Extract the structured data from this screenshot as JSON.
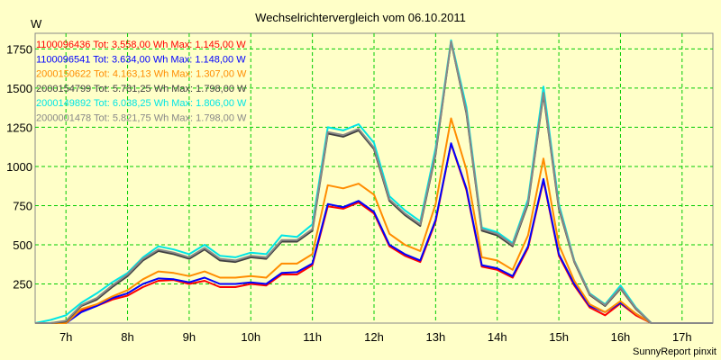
{
  "chart_data": {
    "type": "line",
    "title": "Wechselrichtervergleich vom 06.10.2011",
    "ylabel": "W",
    "xlabel": "",
    "credit": "SunnyReport pinxit",
    "xlim": [
      6.5,
      17.5
    ],
    "ylim": [
      0,
      1850
    ],
    "x_ticks": [
      7,
      8,
      9,
      10,
      11,
      12,
      13,
      14,
      15,
      16,
      17
    ],
    "x_tick_labels": [
      "7h",
      "8h",
      "9h",
      "10h",
      "11h",
      "12h",
      "13h",
      "14h",
      "15h",
      "16h",
      "17h"
    ],
    "y_ticks": [
      250,
      500,
      750,
      1000,
      1250,
      1500,
      1750
    ],
    "y_tick_labels": [
      "250",
      "500",
      "750",
      "1000",
      "1250",
      "1500",
      "1750"
    ],
    "grid": true,
    "legend_position": "top-left",
    "x": [
      6.5,
      6.75,
      7.0,
      7.25,
      7.5,
      7.75,
      8.0,
      8.25,
      8.5,
      8.75,
      9.0,
      9.25,
      9.5,
      9.75,
      10.0,
      10.25,
      10.5,
      10.75,
      11.0,
      11.25,
      11.5,
      11.75,
      12.0,
      12.25,
      12.5,
      12.75,
      13.0,
      13.25,
      13.5,
      13.75,
      14.0,
      14.25,
      14.5,
      14.75,
      15.0,
      15.25,
      15.5,
      15.75,
      16.0,
      16.25,
      16.5,
      16.75,
      17.0,
      17.25,
      17.5
    ],
    "series": [
      {
        "name": "1100096436",
        "legend": "1100096436 Tot: 3.558,00 Wh Max: 1.145,00 W",
        "color": "#ff0000",
        "values": [
          0,
          0,
          0,
          80,
          110,
          150,
          175,
          230,
          270,
          275,
          250,
          270,
          230,
          230,
          250,
          240,
          310,
          310,
          370,
          745,
          730,
          770,
          700,
          490,
          430,
          390,
          650,
          1145,
          850,
          360,
          340,
          290,
          480,
          910,
          430,
          240,
          100,
          50,
          125,
          50,
          0,
          0,
          0,
          0,
          0
        ]
      },
      {
        "name": "1100096541",
        "legend": "1100096541 Tot: 3.634,00 Wh Max: 1.148,00 W",
        "color": "#0000ff",
        "values": [
          0,
          0,
          0,
          70,
          110,
          160,
          190,
          250,
          285,
          280,
          260,
          290,
          250,
          250,
          260,
          250,
          320,
          325,
          380,
          760,
          740,
          780,
          710,
          500,
          440,
          400,
          660,
          1148,
          860,
          370,
          350,
          300,
          490,
          920,
          440,
          250,
          110,
          70,
          130,
          60,
          0,
          0,
          0,
          0,
          0
        ]
      },
      {
        "name": "2000150622",
        "legend": "2000150622 Tot: 4.163,13 Wh Max: 1.307,00 W",
        "color": "#ff8c00",
        "values": [
          0,
          0,
          0,
          90,
          120,
          170,
          210,
          280,
          330,
          320,
          300,
          330,
          290,
          290,
          300,
          290,
          380,
          380,
          440,
          880,
          860,
          890,
          820,
          570,
          500,
          460,
          760,
          1307,
          980,
          420,
          400,
          340,
          560,
          1050,
          500,
          270,
          120,
          70,
          140,
          60,
          0,
          0,
          0,
          0,
          0
        ]
      },
      {
        "name": "2000154799",
        "legend": "2000154799 Tot: 5.781,25 Wh Max: 1.798,00 W",
        "color": "#404040",
        "values": [
          0,
          0,
          10,
          110,
          150,
          230,
          300,
          400,
          460,
          440,
          410,
          470,
          400,
          390,
          420,
          410,
          520,
          520,
          590,
          1210,
          1190,
          1230,
          1110,
          780,
          690,
          620,
          1080,
          1798,
          1340,
          590,
          560,
          490,
          760,
          1460,
          730,
          390,
          180,
          110,
          220,
          90,
          0,
          0,
          0,
          0,
          0
        ]
      },
      {
        "name": "2000149892",
        "legend": "2000149892 Tot: 6.038,25 Wh Max: 1.806,00 W",
        "color": "#00e5e5",
        "values": [
          0,
          20,
          50,
          130,
          190,
          260,
          320,
          420,
          490,
          470,
          440,
          500,
          430,
          420,
          450,
          440,
          560,
          550,
          630,
          1250,
          1230,
          1270,
          1150,
          810,
          720,
          650,
          1120,
          1806,
          1380,
          610,
          580,
          510,
          790,
          1510,
          760,
          400,
          190,
          120,
          240,
          100,
          0,
          0,
          0,
          0,
          0
        ]
      },
      {
        "name": "2000001478",
        "legend": "2000001478 Tot: 5.821,75 Wh Max: 1.798,00 W",
        "color": "#888888",
        "values": [
          0,
          0,
          15,
          115,
          160,
          240,
          310,
          410,
          470,
          450,
          420,
          480,
          410,
          400,
          430,
          420,
          530,
          530,
          600,
          1220,
          1200,
          1240,
          1120,
          790,
          700,
          630,
          1090,
          1798,
          1350,
          600,
          570,
          500,
          770,
          1470,
          740,
          395,
          185,
          115,
          225,
          95,
          0,
          0,
          0,
          0,
          0
        ]
      }
    ]
  }
}
